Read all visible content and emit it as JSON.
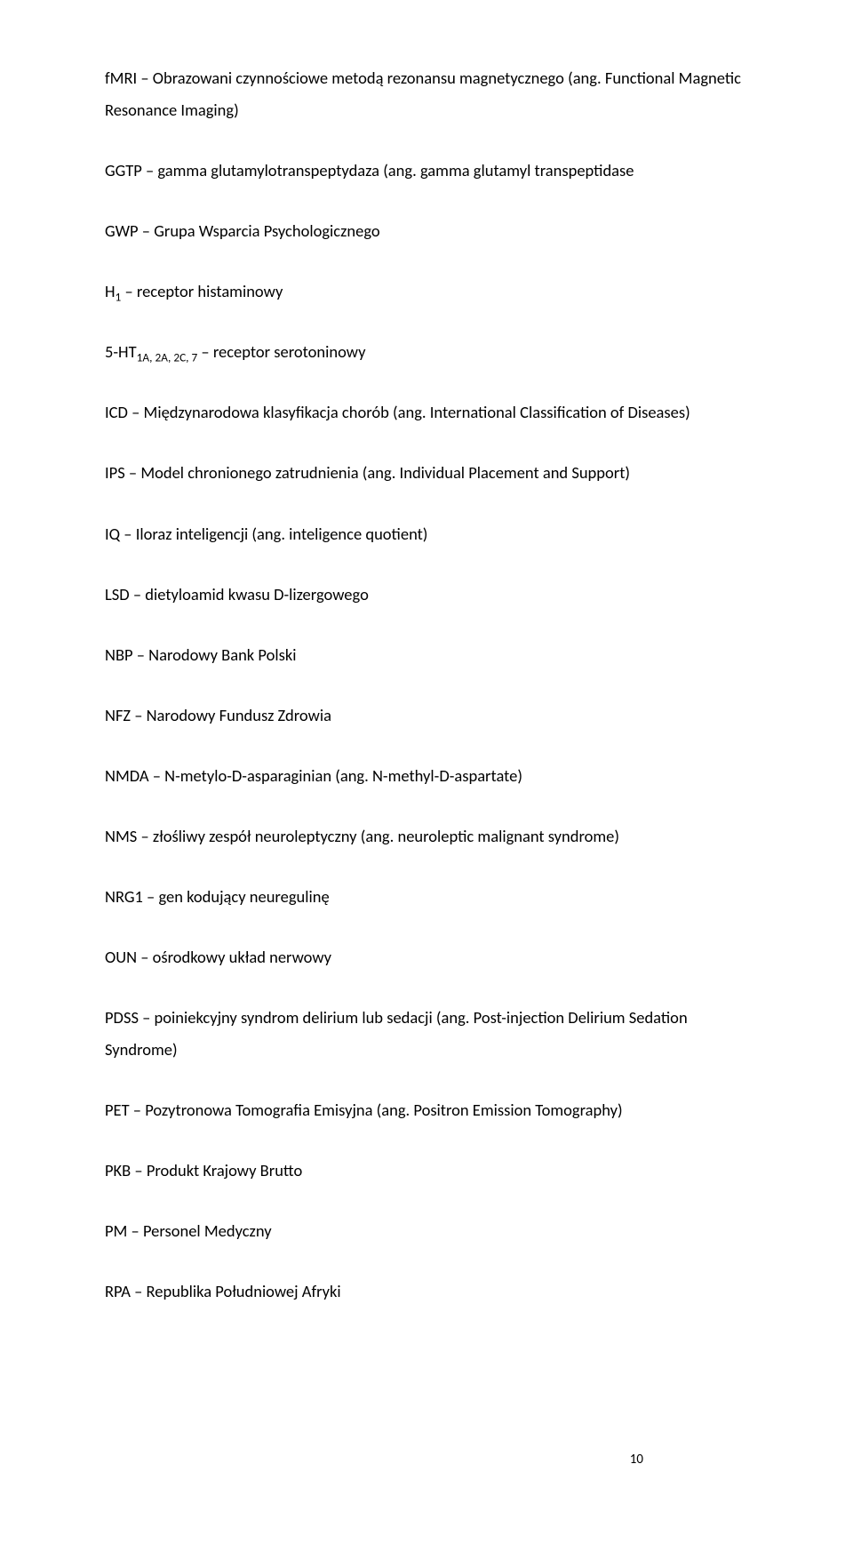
{
  "page": {
    "number": "10",
    "text_color": "#000000",
    "bg_color": "#ffffff",
    "font_family": "Calibri",
    "font_size_pt": 14,
    "line_height": 1.95
  },
  "entries": [
    {
      "abbr": "fMRI",
      "sep": " – ",
      "def_pre": "Obrazowani czynnościowe metodą rezonansu magnetycznego (ang. Functional Magnetic Resonance Imaging)",
      "def_post": ""
    },
    {
      "abbr": "GGTP",
      "sep": " – ",
      "def_pre": "gamma glutamylotranspeptydaza (ang. gamma glutamyl transpeptidase",
      "def_post": ""
    },
    {
      "abbr": "GWP",
      "sep": " – ",
      "def_pre": "Grupa Wsparcia Psychologicznego",
      "def_post": ""
    },
    {
      "abbr": "H",
      "sub": "1",
      "sep": " – ",
      "def_pre": "receptor histaminowy",
      "def_post": ""
    },
    {
      "abbr": "5-HT",
      "sub": "1A, 2A, 2C, 7",
      "sep": " – ",
      "def_pre": "receptor serotoninowy",
      "def_post": ""
    },
    {
      "abbr": "ICD",
      "sep": " – ",
      "def_pre": "Międzynarodowa klasyfikacja chorób (ang. International Classification of Diseases)",
      "def_post": ""
    },
    {
      "abbr": "IPS",
      "sep": " – ",
      "def_pre": "Model chronionego zatrudnienia (ang. Individual Placement and Support)",
      "def_post": ""
    },
    {
      "abbr": "IQ",
      "sep": " – ",
      "def_pre": "Iloraz inteligencji (ang. inteligence quotient)",
      "def_post": ""
    },
    {
      "abbr": "LSD",
      "sep": " – ",
      "def_pre": "dietyloamid kwasu D-lizergowego",
      "def_post": ""
    },
    {
      "abbr": "NBP",
      "sep": " – ",
      "def_pre": "Narodowy Bank Polski",
      "def_post": ""
    },
    {
      "abbr": "NFZ",
      "sep": " – ",
      "def_pre": "Narodowy Fundusz Zdrowia",
      "def_post": ""
    },
    {
      "abbr": "NMDA",
      "sep": " – ",
      "def_pre": "N-metylo-D-asparaginian (ang. N-methyl-D-aspartate)",
      "def_post": ""
    },
    {
      "abbr": "NMS",
      "sep": " – ",
      "def_pre": "złośliwy zespół neuroleptyczny (ang. neuroleptic malignant syndrome)",
      "def_post": ""
    },
    {
      "abbr": "NRG1",
      "sep": " – ",
      "def_pre": "gen kodujący neuregulinę",
      "def_post": ""
    },
    {
      "abbr": "OUN",
      "sep": " – ",
      "def_pre": "ośrodkowy układ nerwowy",
      "def_post": ""
    },
    {
      "abbr": "PDSS",
      "sep": " – ",
      "def_pre": "poiniekcyjny syndrom delirium lub sedacji (ang. Post-injection Delirium Sedation Syndrome)",
      "def_post": ""
    },
    {
      "abbr": "PET",
      "sep": " – ",
      "def_pre": "Pozytronowa Tomografia Emisyjna (ang. Positron Emission Tomography)",
      "def_post": ""
    },
    {
      "abbr": "PKB",
      "sep": " – ",
      "def_pre": "Produkt Krajowy Brutto",
      "def_post": ""
    },
    {
      "abbr": "PM",
      "sep": " – ",
      "def_pre": "Personel Medyczny",
      "def_post": ""
    },
    {
      "abbr": "RPA",
      "sep": " – ",
      "def_pre": "Republika Południowej Afryki",
      "def_post": ""
    }
  ]
}
